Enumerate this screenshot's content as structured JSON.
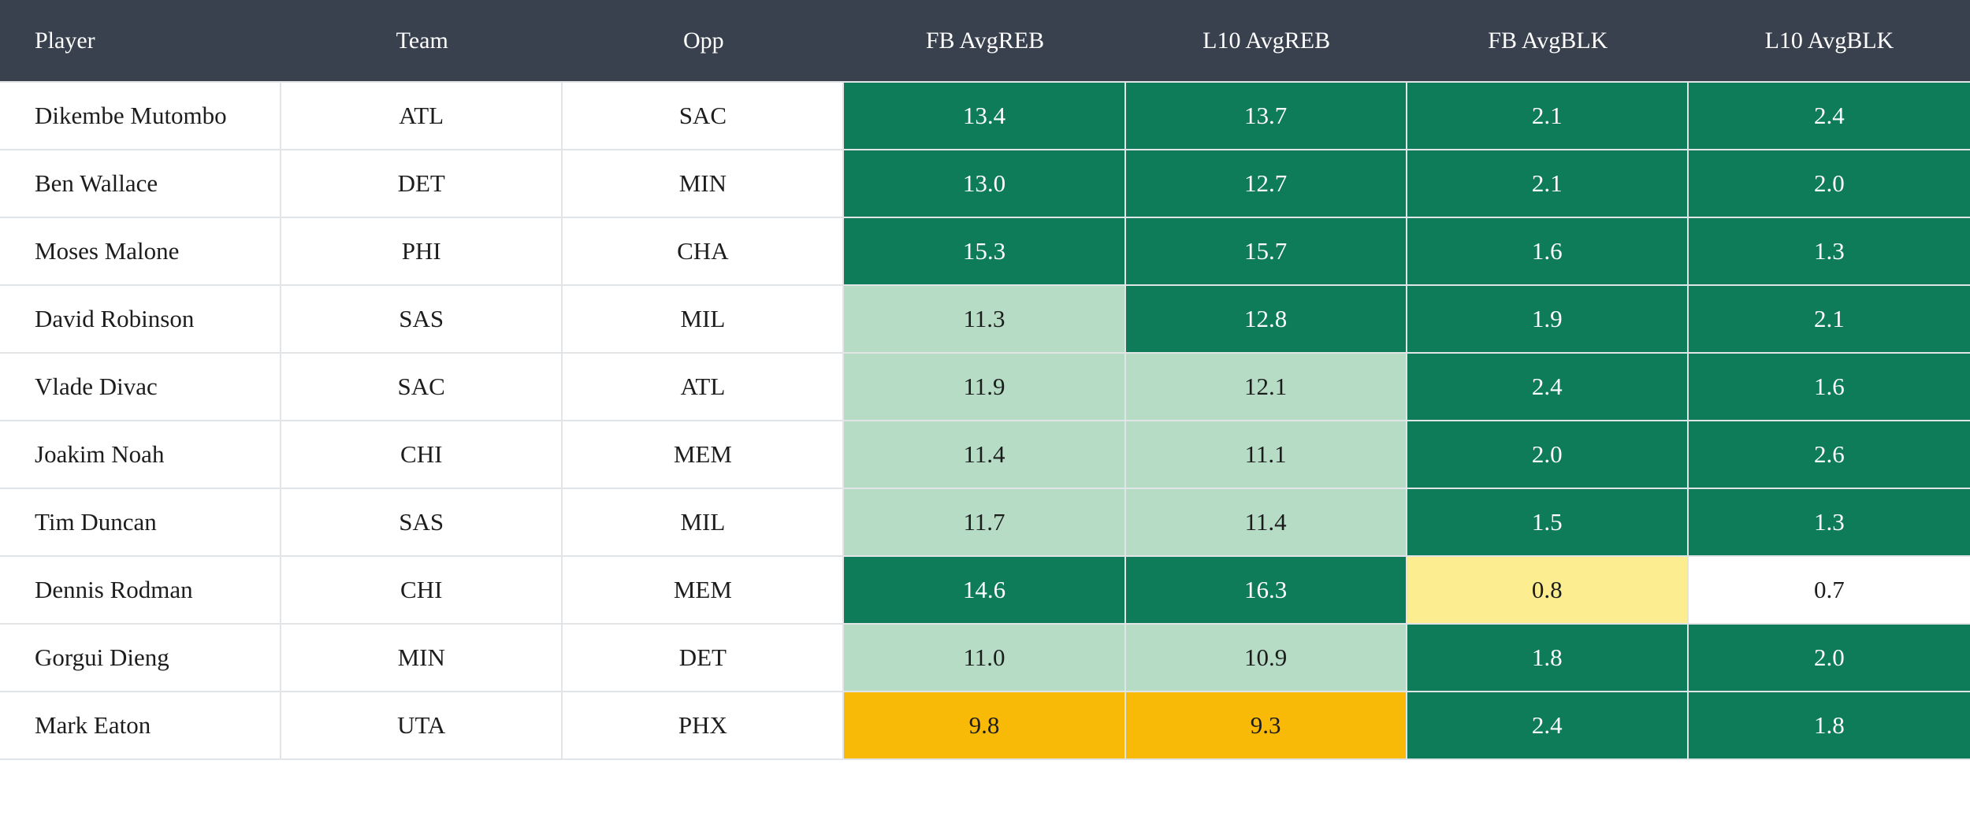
{
  "table": {
    "columns": [
      {
        "key": "player",
        "label": "Player"
      },
      {
        "key": "team",
        "label": "Team"
      },
      {
        "key": "opp",
        "label": "Opp"
      },
      {
        "key": "fb_avgreb",
        "label": "FB AvgREB"
      },
      {
        "key": "l10_avgreb",
        "label": "L10 AvgREB"
      },
      {
        "key": "fb_avgblk",
        "label": "FB AvgBLK"
      },
      {
        "key": "l10_avgblk",
        "label": "L10 AvgBLK"
      }
    ],
    "rows": [
      {
        "player": "Dikembe Mutombo",
        "team": "ATL",
        "opp": "SAC",
        "fb_avgreb": {
          "value": "13.4",
          "tone": "strong"
        },
        "l10_avgreb": {
          "value": "13.7",
          "tone": "strong"
        },
        "fb_avgblk": {
          "value": "2.1",
          "tone": "strong"
        },
        "l10_avgblk": {
          "value": "2.4",
          "tone": "strong"
        }
      },
      {
        "player": "Ben Wallace",
        "team": "DET",
        "opp": "MIN",
        "fb_avgreb": {
          "value": "13.0",
          "tone": "strong"
        },
        "l10_avgreb": {
          "value": "12.7",
          "tone": "strong"
        },
        "fb_avgblk": {
          "value": "2.1",
          "tone": "strong"
        },
        "l10_avgblk": {
          "value": "2.0",
          "tone": "strong"
        }
      },
      {
        "player": "Moses Malone",
        "team": "PHI",
        "opp": "CHA",
        "fb_avgreb": {
          "value": "15.3",
          "tone": "strong"
        },
        "l10_avgreb": {
          "value": "15.7",
          "tone": "strong"
        },
        "fb_avgblk": {
          "value": "1.6",
          "tone": "strong"
        },
        "l10_avgblk": {
          "value": "1.3",
          "tone": "strong"
        }
      },
      {
        "player": "David Robinson",
        "team": "SAS",
        "opp": "MIL",
        "fb_avgreb": {
          "value": "11.3",
          "tone": "soft"
        },
        "l10_avgreb": {
          "value": "12.8",
          "tone": "strong"
        },
        "fb_avgblk": {
          "value": "1.9",
          "tone": "strong"
        },
        "l10_avgblk": {
          "value": "2.1",
          "tone": "strong"
        }
      },
      {
        "player": "Vlade Divac",
        "team": "SAC",
        "opp": "ATL",
        "fb_avgreb": {
          "value": "11.9",
          "tone": "soft"
        },
        "l10_avgreb": {
          "value": "12.1",
          "tone": "soft"
        },
        "fb_avgblk": {
          "value": "2.4",
          "tone": "strong"
        },
        "l10_avgblk": {
          "value": "1.6",
          "tone": "strong"
        }
      },
      {
        "player": "Joakim Noah",
        "team": "CHI",
        "opp": "MEM",
        "fb_avgreb": {
          "value": "11.4",
          "tone": "soft"
        },
        "l10_avgreb": {
          "value": "11.1",
          "tone": "soft"
        },
        "fb_avgblk": {
          "value": "2.0",
          "tone": "strong"
        },
        "l10_avgblk": {
          "value": "2.6",
          "tone": "strong"
        }
      },
      {
        "player": "Tim Duncan",
        "team": "SAS",
        "opp": "MIL",
        "fb_avgreb": {
          "value": "11.7",
          "tone": "soft"
        },
        "l10_avgreb": {
          "value": "11.4",
          "tone": "soft"
        },
        "fb_avgblk": {
          "value": "1.5",
          "tone": "strong"
        },
        "l10_avgblk": {
          "value": "1.3",
          "tone": "strong"
        }
      },
      {
        "player": "Dennis Rodman",
        "team": "CHI",
        "opp": "MEM",
        "fb_avgreb": {
          "value": "14.6",
          "tone": "strong"
        },
        "l10_avgreb": {
          "value": "16.3",
          "tone": "strong"
        },
        "fb_avgblk": {
          "value": "0.8",
          "tone": "weak"
        },
        "l10_avgblk": {
          "value": "0.7",
          "tone": "neutral"
        }
      },
      {
        "player": "Gorgui Dieng",
        "team": "MIN",
        "opp": "DET",
        "fb_avgreb": {
          "value": "11.0",
          "tone": "soft"
        },
        "l10_avgreb": {
          "value": "10.9",
          "tone": "soft"
        },
        "fb_avgblk": {
          "value": "1.8",
          "tone": "strong"
        },
        "l10_avgblk": {
          "value": "2.0",
          "tone": "strong"
        }
      },
      {
        "player": "Mark Eaton",
        "team": "UTA",
        "opp": "PHX",
        "fb_avgreb": {
          "value": "9.8",
          "tone": "poor"
        },
        "l10_avgreb": {
          "value": "9.3",
          "tone": "poor"
        },
        "fb_avgblk": {
          "value": "2.4",
          "tone": "strong"
        },
        "l10_avgblk": {
          "value": "1.8",
          "tone": "strong"
        }
      }
    ]
  },
  "colors": {
    "header_bg": "#39414f",
    "header_text": "#ffffff",
    "row_text": "#1d1d1d",
    "grid": "#e2e5e7",
    "strong_bg": "#0e7c58",
    "strong_text": "#ffffff",
    "soft_bg": "#b6dcc6",
    "soft_text": "#1c1c1c",
    "weak_bg": "#fcee90",
    "weak_text": "#1c1c1c",
    "poor_bg": "#f9ba07",
    "poor_text": "#1c1c1c",
    "neutral_bg": "#ffffff",
    "neutral_text": "#1c1c1c"
  },
  "chart_data": {
    "type": "table",
    "columns": [
      "Player",
      "Team",
      "Opp",
      "FB AvgREB",
      "L10 AvgREB",
      "FB AvgBLK",
      "L10 AvgBLK"
    ],
    "rows": [
      [
        "Dikembe Mutombo",
        "ATL",
        "SAC",
        13.4,
        13.7,
        2.1,
        2.4
      ],
      [
        "Ben Wallace",
        "DET",
        "MIN",
        13.0,
        12.7,
        2.1,
        2.0
      ],
      [
        "Moses Malone",
        "PHI",
        "CHA",
        15.3,
        15.7,
        1.6,
        1.3
      ],
      [
        "David Robinson",
        "SAS",
        "MIL",
        11.3,
        12.8,
        1.9,
        2.1
      ],
      [
        "Vlade Divac",
        "SAC",
        "ATL",
        11.9,
        12.1,
        2.4,
        1.6
      ],
      [
        "Joakim Noah",
        "CHI",
        "MEM",
        11.4,
        11.1,
        2.0,
        2.6
      ],
      [
        "Tim Duncan",
        "SAS",
        "MIL",
        11.7,
        11.4,
        1.5,
        1.3
      ],
      [
        "Dennis Rodman",
        "CHI",
        "MEM",
        14.6,
        16.3,
        0.8,
        0.7
      ],
      [
        "Gorgui Dieng",
        "MIN",
        "DET",
        11.0,
        10.9,
        1.8,
        2.0
      ],
      [
        "Mark Eaton",
        "UTA",
        "PHX",
        9.8,
        9.3,
        2.4,
        1.8
      ]
    ]
  }
}
